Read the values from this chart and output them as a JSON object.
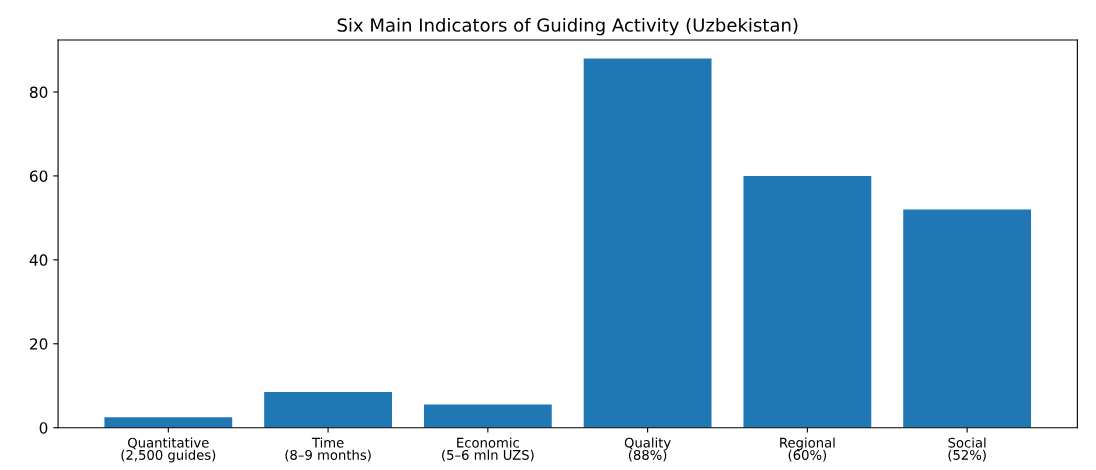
{
  "chart_data": {
    "type": "bar",
    "title": "Six Main Indicators of Guiding Activity (Uzbekistan)",
    "categories": [
      "Quantitative\n(2,500 guides)",
      "Time\n(8–9 months)",
      "Economic\n(5–6 mln UZS)",
      "Quality\n(88%)",
      "Regional\n(60%)",
      "Social\n(52%)"
    ],
    "values": [
      2.5,
      8.5,
      5.5,
      88,
      60,
      52
    ],
    "color": "#1f77b4",
    "ylim": [
      0,
      92.4
    ],
    "yticks": [
      0,
      20,
      40,
      60,
      80
    ],
    "grid": false
  }
}
